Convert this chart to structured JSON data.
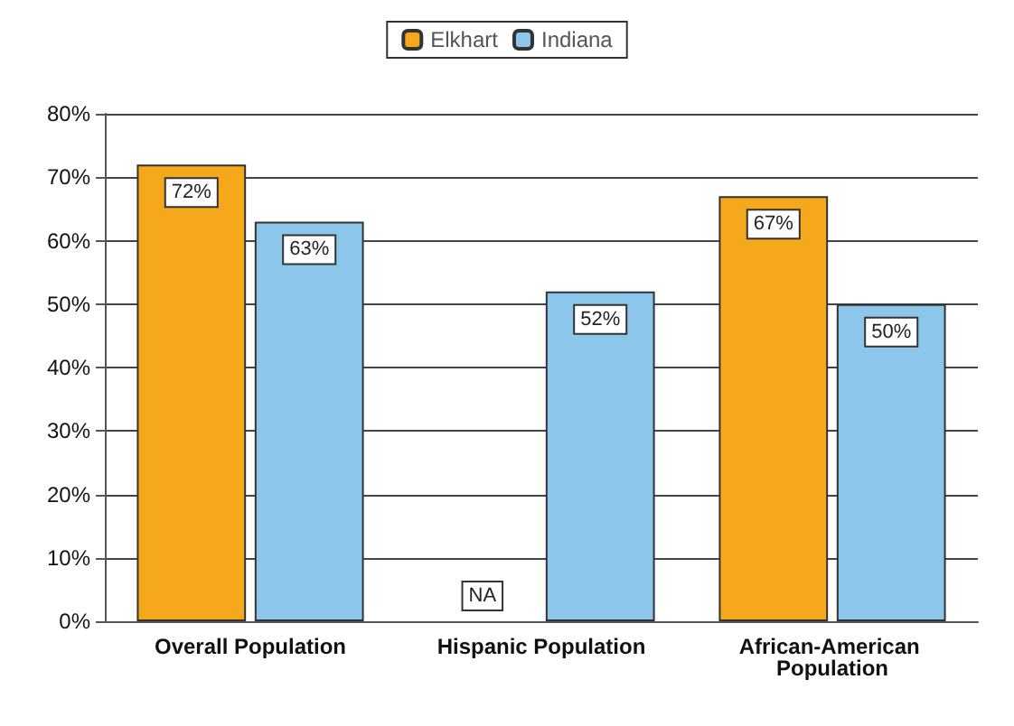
{
  "chart_data": {
    "type": "bar",
    "categories": [
      "Overall Population",
      "Hispanic Population",
      "African-American Population"
    ],
    "series": [
      {
        "name": "Elkhart",
        "color": "#f5a81c",
        "values": [
          72,
          null,
          67
        ],
        "value_labels": [
          "72%",
          "NA",
          "67%"
        ]
      },
      {
        "name": "Indiana",
        "color": "#8cc6ea",
        "values": [
          63,
          52,
          50
        ],
        "value_labels": [
          "63%",
          "52%",
          "50%"
        ]
      }
    ],
    "ylim": [
      0,
      80
    ],
    "yticks": [
      {
        "value": 0,
        "label": "0%"
      },
      {
        "value": 10,
        "label": "10%"
      },
      {
        "value": 20,
        "label": "20%"
      },
      {
        "value": 30,
        "label": "30%"
      },
      {
        "value": 40,
        "label": "40%"
      },
      {
        "value": 50,
        "label": "50%"
      },
      {
        "value": 60,
        "label": "60%"
      },
      {
        "value": 70,
        "label": "70%"
      },
      {
        "value": 80,
        "label": "80%"
      }
    ],
    "grid": "y",
    "legend": "top"
  }
}
